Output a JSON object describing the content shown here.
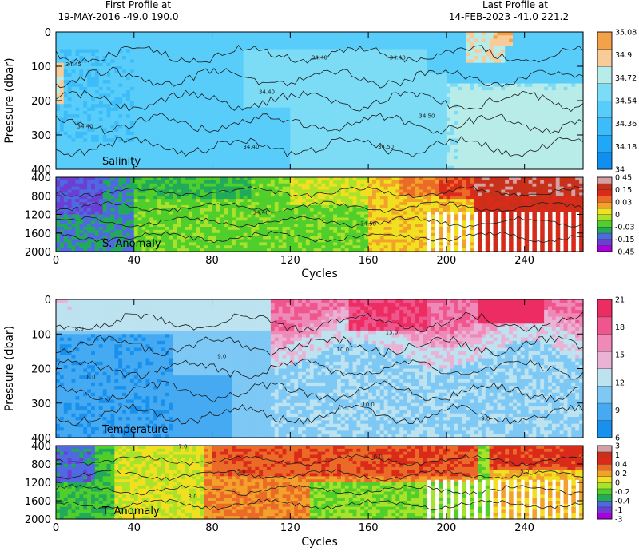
{
  "header": {
    "first_title": "First Profile at",
    "first_info": "19-MAY-2016    -49.0  190.0",
    "last_title": "Last Profile at",
    "last_info": "14-FEB-2023    -41.0  221.2"
  },
  "colors": {
    "salinity": [
      "#0f8ff0",
      "#1fa8f8",
      "#3cbcf8",
      "#59cdfa",
      "#7ddcf5",
      "#b8ece8",
      "#f7cc99",
      "#f3a24a"
    ],
    "temperature": [
      "#1890ee",
      "#45aaf2",
      "#7dc8f5",
      "#bde2f0",
      "#eab3d6",
      "#ef8ab8",
      "#f0568e",
      "#ec2d62"
    ],
    "anomaly": [
      "#aa00dd",
      "#6b3fd3",
      "#4f6ae0",
      "#21aa5a",
      "#4fce2c",
      "#a8e22a",
      "#f0e020",
      "#f2a22a",
      "#ec6a28",
      "#da2a1a",
      "#c8301a",
      "#d4a0a4"
    ]
  },
  "chart_data": [
    {
      "type": "heatmap",
      "panel_label": "Salinity",
      "ylabel": "Pressure (dbar)",
      "xlabel": "",
      "x_ticks": [
        0,
        40,
        80,
        120,
        160,
        200,
        240
      ],
      "xlim": [
        0,
        270
      ],
      "y_ticks": [
        0,
        100,
        200,
        300,
        400
      ],
      "ylim": [
        400,
        0
      ],
      "colorbar_ticks": [
        "35.08",
        "34.9",
        "34.72",
        "34.54",
        "34.36",
        "34.18",
        "34"
      ],
      "contour_labels": [
        {
          "text": "34.40",
          "cycle": 108,
          "pressure": 180
        },
        {
          "text": "34.40",
          "cycle": 135,
          "pressure": 80
        },
        {
          "text": "34.40",
          "cycle": 175,
          "pressure": 80
        },
        {
          "text": "34.50",
          "cycle": 190,
          "pressure": 250
        },
        {
          "text": "34.50",
          "cycle": 169,
          "pressure": 340
        },
        {
          "text": "34.40",
          "cycle": 100,
          "pressure": 340
        },
        {
          "text": "34.40",
          "cycle": 15,
          "pressure": 280
        },
        {
          "text": "34.45",
          "cycle": 9,
          "pressure": 100
        }
      ]
    },
    {
      "type": "heatmap",
      "panel_label": "S. Anomaly",
      "x_ticks": [
        0,
        40,
        80,
        120,
        160,
        200,
        240
      ],
      "xlim": [
        0,
        270
      ],
      "y_ticks": [
        400,
        800,
        1200,
        1600,
        2000
      ],
      "ylim": [
        2000,
        400
      ],
      "colorbar_ticks": [
        "0.45",
        "0.15",
        "0.03",
        "0",
        "-0.03",
        "-0.15",
        "-0.45"
      ],
      "contour_labels": [
        {
          "text": "34.40",
          "cycle": 105,
          "pressure": 1200
        },
        {
          "text": "34.50",
          "cycle": 160,
          "pressure": 1440
        }
      ]
    },
    {
      "type": "heatmap",
      "panel_label": "Temperature",
      "ylabel": "Pressure (dbar)",
      "xlabel": "Cycles",
      "x_ticks": [
        0,
        40,
        80,
        120,
        160,
        200,
        240
      ],
      "xlim": [
        0,
        270
      ],
      "y_ticks": [
        0,
        100,
        200,
        300,
        400
      ],
      "ylim": [
        400,
        0
      ],
      "colorbar_ticks": [
        "21",
        "18",
        "15",
        "12",
        "9",
        "6"
      ],
      "contour_labels": [
        {
          "text": "8.0",
          "cycle": 12,
          "pressure": 90
        },
        {
          "text": "8.0",
          "cycle": 18,
          "pressure": 230
        },
        {
          "text": "9.0",
          "cycle": 85,
          "pressure": 170
        },
        {
          "text": "10.0",
          "cycle": 147,
          "pressure": 150
        },
        {
          "text": "13.0",
          "cycle": 172,
          "pressure": 100
        },
        {
          "text": "10.0",
          "cycle": 160,
          "pressure": 310
        },
        {
          "text": "9.0",
          "cycle": 220,
          "pressure": 350
        }
      ]
    },
    {
      "type": "heatmap",
      "panel_label": "T. Anomaly",
      "xlabel": "Cycles",
      "x_ticks": [
        0,
        40,
        80,
        120,
        160,
        200,
        240
      ],
      "xlim": [
        0,
        270
      ],
      "y_ticks": [
        400,
        800,
        1200,
        1600,
        2000
      ],
      "ylim": [
        2000,
        400
      ],
      "colorbar_ticks": [
        "3",
        "1",
        "0.4",
        "0.2",
        "0",
        "-0.2",
        "-0.4",
        "-1",
        "-3"
      ],
      "contour_labels": [
        {
          "text": "7.0",
          "cycle": 65,
          "pressure": 460
        },
        {
          "text": "6.0",
          "cycle": 165,
          "pressure": 680
        },
        {
          "text": "5.0",
          "cycle": 95,
          "pressure": 1000
        },
        {
          "text": "5.0",
          "cycle": 240,
          "pressure": 1000
        },
        {
          "text": "3.0",
          "cycle": 70,
          "pressure": 1550
        }
      ]
    }
  ]
}
